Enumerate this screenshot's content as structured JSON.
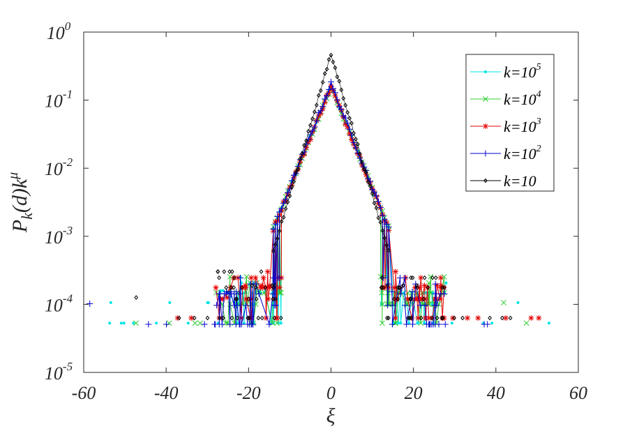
{
  "chart_data": {
    "type": "line",
    "title": "",
    "xlabel": "ξ",
    "ylabel": {
      "base": "P",
      "sub": "k",
      "mid": "(d)k",
      "sup": "μ"
    },
    "xlim": [
      -60,
      60
    ],
    "ylim_log10": [
      -5,
      0
    ],
    "yscale": "log",
    "grid": false,
    "legend_position": "top-right",
    "x_ticks": [
      "-60",
      "-40",
      "-20",
      "0",
      "20",
      "40",
      "60"
    ],
    "y_ticks": [
      {
        "base": "10",
        "exp": "0"
      },
      {
        "base": "10",
        "exp": "-1"
      },
      {
        "base": "10",
        "exp": "-2"
      },
      {
        "base": "10",
        "exp": "-3"
      },
      {
        "base": "10",
        "exp": "-4"
      },
      {
        "base": "10",
        "exp": "-5"
      }
    ],
    "series": [
      {
        "name": "k=10",
        "exp": "5",
        "color": "#00e5e5",
        "marker": "point",
        "peak": 0.16,
        "scale": 2.9,
        "floor_y": 5.3e-05,
        "tail_range": [
          -60,
          55
        ]
      },
      {
        "name": "k=10",
        "exp": "4",
        "color": "#33cc33",
        "marker": "x",
        "peak": 0.155,
        "scale": 2.95,
        "floor_y": 5.3e-05,
        "tail_range": [
          -50,
          54
        ]
      },
      {
        "name": "k=10",
        "exp": "3",
        "color": "#e60000",
        "marker": "star",
        "peak": 0.16,
        "scale": 2.9,
        "floor_y": 6.3e-05,
        "tail_range": [
          -42,
          54
        ]
      },
      {
        "name": "k=10",
        "exp": "2",
        "color": "#0000cc",
        "marker": "plus",
        "peak": 0.175,
        "scale": 2.85,
        "floor_y": 5.1e-05,
        "tail_range": [
          -59,
          48
        ]
      },
      {
        "name": "k=10",
        "exp": "",
        "color": "#000000",
        "marker": "diamond",
        "peak": 0.47,
        "scale": 2.1,
        "floor_y": 6.3e-05,
        "tail_range": [
          -53,
          60
        ]
      }
    ]
  }
}
